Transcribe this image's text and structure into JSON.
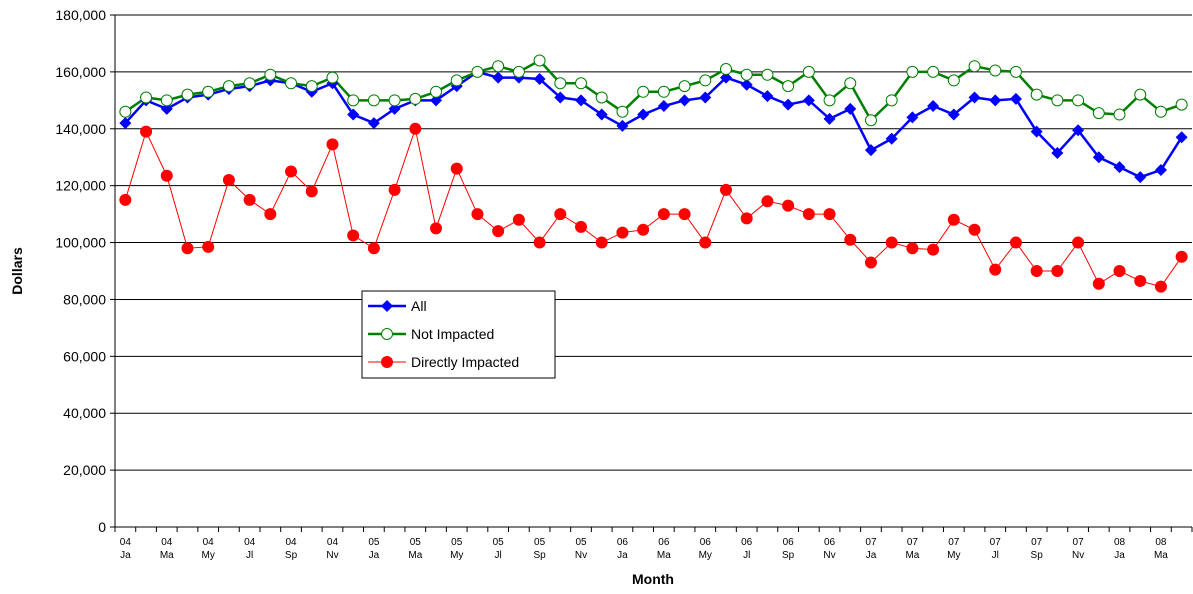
{
  "chart_data": {
    "type": "line",
    "x_label": "Month",
    "y_label": "Dollars",
    "categories": [
      "04 Ja",
      null,
      "04 Ma",
      null,
      "04 My",
      null,
      "04 Jl",
      null,
      "04 Sp",
      null,
      "04 Nv",
      null,
      "05 Ja",
      null,
      "05 Ma",
      null,
      "05 My",
      null,
      "05 Jl",
      null,
      "05 Sp",
      null,
      "05 Nv",
      null,
      "06 Ja",
      null,
      "06 Ma",
      null,
      "06 My",
      null,
      "06 Jl",
      null,
      "06 Sp",
      null,
      "06 Nv",
      null,
      "07 Ja",
      null,
      "07 Ma",
      null,
      "07 My",
      null,
      "07 Jl",
      null,
      "07 Sp",
      null,
      "07 Nv",
      null,
      "08 Ja",
      null,
      "08 Ma",
      null
    ],
    "series": [
      {
        "name": "All",
        "color": "#0000ff",
        "marker": "diamond",
        "values": [
          142000,
          150000,
          147000,
          151000,
          152000,
          154000,
          155000,
          157000,
          156000,
          153000,
          156000,
          145000,
          142000,
          147000,
          150000,
          150000,
          155000,
          160000,
          158000,
          158000,
          157500,
          151000,
          150000,
          145000,
          141000,
          145000,
          148000,
          150000,
          151000,
          158000,
          155500,
          151500,
          148500,
          150000,
          143500,
          147000,
          132500,
          136500,
          144000,
          148000,
          145000,
          151000,
          150000,
          150500,
          139000,
          131500,
          139500,
          130000,
          126500,
          123000,
          125500,
          137000
        ]
      },
      {
        "name": "Not Impacted",
        "color": "#008000",
        "marker": "open-circle",
        "values": [
          146000,
          151000,
          150000,
          152000,
          153000,
          155000,
          156000,
          159000,
          156000,
          155000,
          158000,
          150000,
          150000,
          150000,
          150500,
          153000,
          157000,
          160000,
          162000,
          160000,
          164000,
          156000,
          156000,
          151000,
          146000,
          153000,
          153000,
          155000,
          157000,
          161000,
          159000,
          159000,
          155000,
          160000,
          150000,
          156000,
          143000,
          150000,
          160000,
          160000,
          157000,
          162000,
          160500,
          160000,
          152000,
          150000,
          150000,
          145500,
          145000,
          152000,
          146000,
          148500
        ]
      },
      {
        "name": "Directly Impacted",
        "color": "#ff0000",
        "marker": "circle",
        "values": [
          115000,
          139000,
          123500,
          98000,
          98500,
          122000,
          115000,
          110000,
          125000,
          118000,
          134500,
          102500,
          98000,
          118500,
          140000,
          105000,
          126000,
          110000,
          104000,
          108000,
          100000,
          110000,
          105500,
          100000,
          103500,
          104500,
          110000,
          110000,
          100000,
          118500,
          108500,
          114500,
          113000,
          110000,
          110000,
          101000,
          93000,
          100000,
          98000,
          97500,
          108000,
          104500,
          90500,
          100000,
          90000,
          90000,
          100000,
          85500,
          90000,
          86500,
          84500,
          95000
        ]
      }
    ],
    "ylim": [
      0,
      180000
    ],
    "yticks": [
      0,
      {
        "value": 20000,
        "label": "20,000"
      },
      {
        "value": 40000,
        "label": "40,000"
      },
      {
        "value": 60000,
        "label": "60,000"
      },
      {
        "value": 80000,
        "label": "80,000"
      },
      {
        "value": 100000,
        "label": "100,000"
      },
      {
        "value": 120000,
        "label": "120,000"
      },
      {
        "value": 140000,
        "label": "140,000"
      },
      {
        "value": 160000,
        "label": "160,000"
      },
      {
        "value": 180000,
        "label": "180,000"
      }
    ],
    "grid": true
  }
}
